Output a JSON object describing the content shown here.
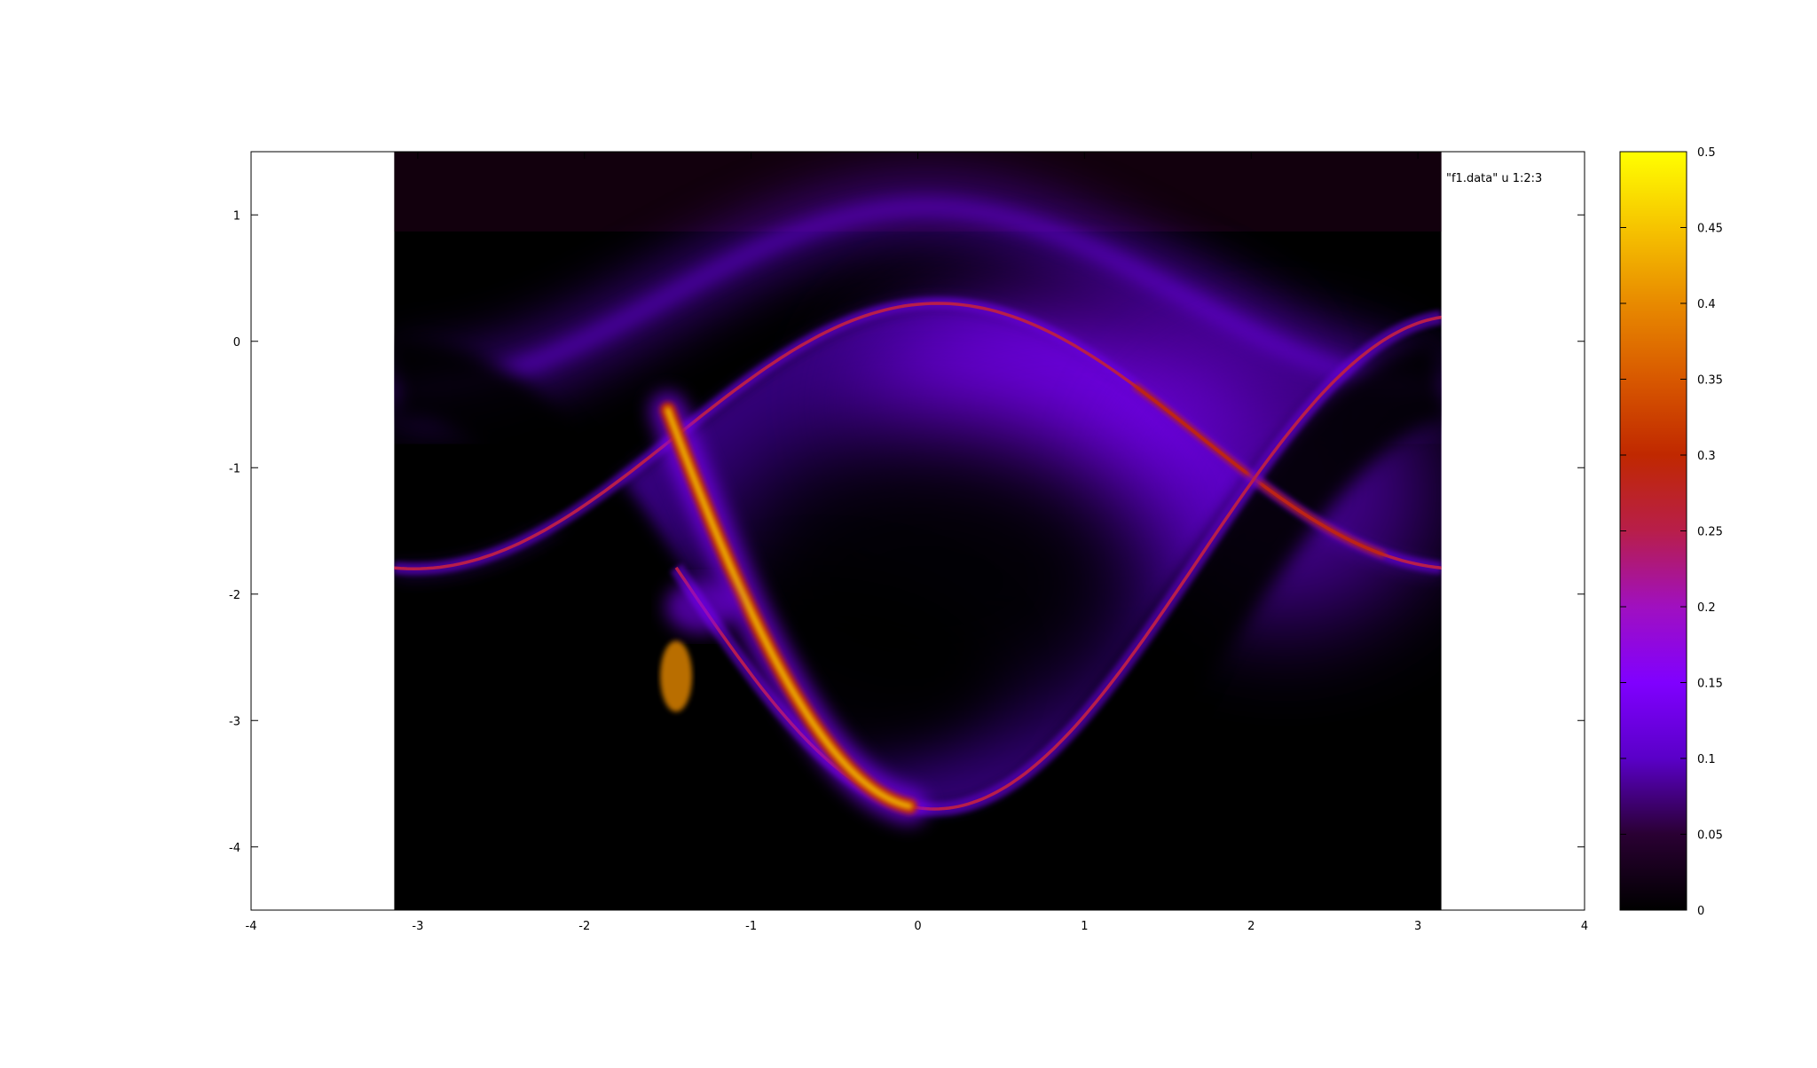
{
  "chart_data": {
    "type": "heatmap",
    "title": "",
    "xlabel": "",
    "ylabel": "",
    "xlim": [
      -4,
      4
    ],
    "ylim": [
      -4.5,
      1.5
    ],
    "data_xrange": [
      -3.14159,
      3.14159
    ],
    "data_yrange": [
      -4.5,
      1.5
    ],
    "x_ticks": [
      "-4",
      "-3",
      "-2",
      "-1",
      "0",
      "1",
      "2",
      "3",
      "4"
    ],
    "y_ticks": [
      "1",
      "0",
      "-1",
      "-2",
      "-3",
      "-4"
    ],
    "legend": {
      "label": "\"f1.data\" u 1:2:3",
      "position": "top-right"
    },
    "colorbar": {
      "range": [
        0,
        0.5
      ],
      "ticks": [
        "0",
        "0.05",
        "0.1",
        "0.15",
        "0.2",
        "0.25",
        "0.3",
        "0.35",
        "0.4",
        "0.45",
        "0.5"
      ],
      "palette": [
        "#000000",
        "#2a0033",
        "#5a00c8",
        "#8000ff",
        "#a010c0",
        "#b81e4a",
        "#c02800",
        "#d85800",
        "#e88a00",
        "#f6c400",
        "#ffff00"
      ]
    },
    "features": [
      {
        "name": "upper-ridge",
        "note": "thin band along y = -0.75 + 1.05*cos(x-0.12); value ~0.3 near x 1.8-2.5, ~0.22 elsewhere"
      },
      {
        "name": "lower-ridge",
        "note": "thin band along y = -1.75 - 1.95*cos(x-0.1) for x > -1.4; value ~0.45 near x -1.5 to -0.3"
      },
      {
        "name": "hook",
        "note": "bright tip near (-1.45, -2.6), value ~0.35-0.45"
      },
      {
        "name": "outer-filament",
        "note": "band from (-3.14, -0.4) rising to (0, 1.1) and back to (3.14, -0.35), value ~0.08-0.12"
      },
      {
        "name": "core",
        "note": "dark vortex center near (0.1, -1.9), value ~0.0-0.03"
      }
    ]
  }
}
